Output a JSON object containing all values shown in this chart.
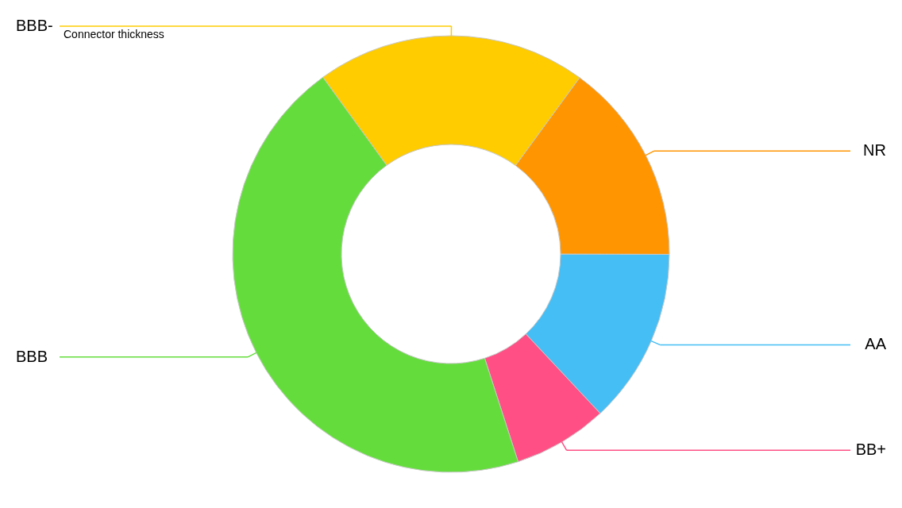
{
  "chart_data": {
    "type": "donut",
    "categories": [
      "NR",
      "AA",
      "BB+",
      "BBB",
      "BBB-"
    ],
    "values": [
      15,
      13,
      7,
      45,
      20
    ],
    "colors": [
      "#ff9500",
      "#44bef5",
      "#ff4f85",
      "#64dd3c",
      "#ffcc00"
    ],
    "annotations": [
      "Connector thickness"
    ]
  }
}
